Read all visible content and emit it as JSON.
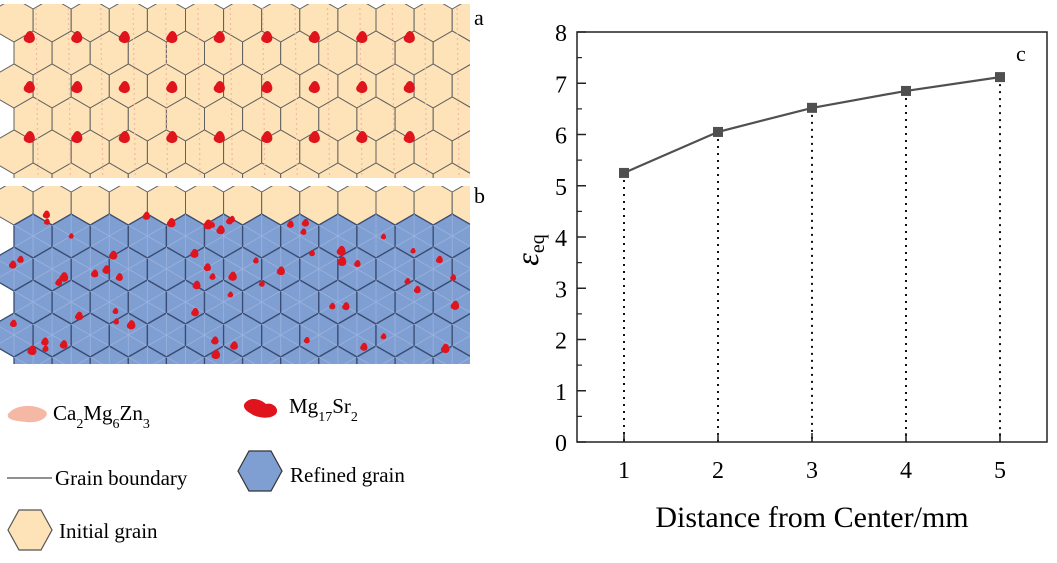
{
  "panels": {
    "a_label": "a",
    "b_label": "b",
    "c_label": "c"
  },
  "legend": {
    "ca_phase": {
      "base": "Ca",
      "s1": "2",
      "mid1": "Mg",
      "s2": "6",
      "mid2": "Zn",
      "s3": "3",
      "color": "#f4b8a4"
    },
    "mg_phase": {
      "base": "Mg",
      "s1": "17",
      "mid1": "Sr",
      "s2": "2",
      "color": "#e0141c"
    },
    "grain_boundary": "Grain boundary",
    "refined_grain": "Refined grain",
    "initial_grain": "Initial grain",
    "refined_color": "#7f9fd3",
    "initial_color": "#fde3b7"
  },
  "chart_data": {
    "type": "line",
    "x": [
      1,
      2,
      3,
      4,
      5
    ],
    "values": [
      5.25,
      6.05,
      6.52,
      6.85,
      7.12
    ],
    "xlabel": "Distance from Center/mm",
    "ylabel_symbol": "ε",
    "ylabel_sub": "eq",
    "xlim": [
      0.5,
      5.5
    ],
    "ylim": [
      0,
      8
    ],
    "xticks": [
      1,
      2,
      3,
      4,
      5
    ],
    "yticks": [
      0,
      1,
      2,
      3,
      4,
      5,
      6,
      7,
      8
    ],
    "series_color": "#505050",
    "dropline_style": "dotted"
  }
}
